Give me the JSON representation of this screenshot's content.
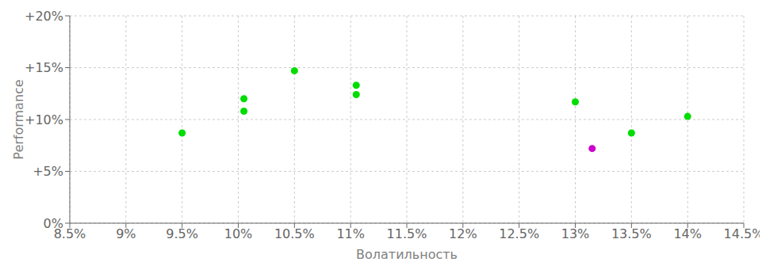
{
  "chart_data": {
    "type": "scatter",
    "xlabel": "Волатильность",
    "ylabel": "Performance",
    "series": [
      {
        "color": "#00dd00",
        "x": [
          9.5,
          10.05,
          10.05,
          10.5,
          11.05,
          11.05,
          13.0,
          13.5,
          14.0
        ],
        "values": [
          8.7,
          12.0,
          10.8,
          14.7,
          13.3,
          12.4,
          11.7,
          8.7,
          10.3
        ]
      },
      {
        "color": "#cc00cc",
        "x": [
          13.15
        ],
        "values": [
          7.2
        ]
      }
    ],
    "xlim": [
      8.5,
      14.5
    ],
    "ylim": [
      0,
      20
    ],
    "xticks": [
      {
        "value": 8.5,
        "label": "8.5%"
      },
      {
        "value": 9.0,
        "label": "9%"
      },
      {
        "value": 9.5,
        "label": "9.5%"
      },
      {
        "value": 10.0,
        "label": "10%"
      },
      {
        "value": 10.5,
        "label": "10.5%"
      },
      {
        "value": 11.0,
        "label": "11%"
      },
      {
        "value": 11.5,
        "label": "11.5%"
      },
      {
        "value": 12.0,
        "label": "12%"
      },
      {
        "value": 12.5,
        "label": "12.5%"
      },
      {
        "value": 13.0,
        "label": "13%"
      },
      {
        "value": 13.5,
        "label": "13.5%"
      },
      {
        "value": 14.0,
        "label": "14%"
      },
      {
        "value": 14.5,
        "label": "14.5%"
      }
    ],
    "yticks": [
      {
        "value": 0,
        "label": "0%"
      },
      {
        "value": 5,
        "label": "+5%"
      },
      {
        "value": 10,
        "label": "+10%"
      },
      {
        "value": 15,
        "label": "+15%"
      },
      {
        "value": 20,
        "label": "+20%"
      }
    ],
    "grid": true
  }
}
